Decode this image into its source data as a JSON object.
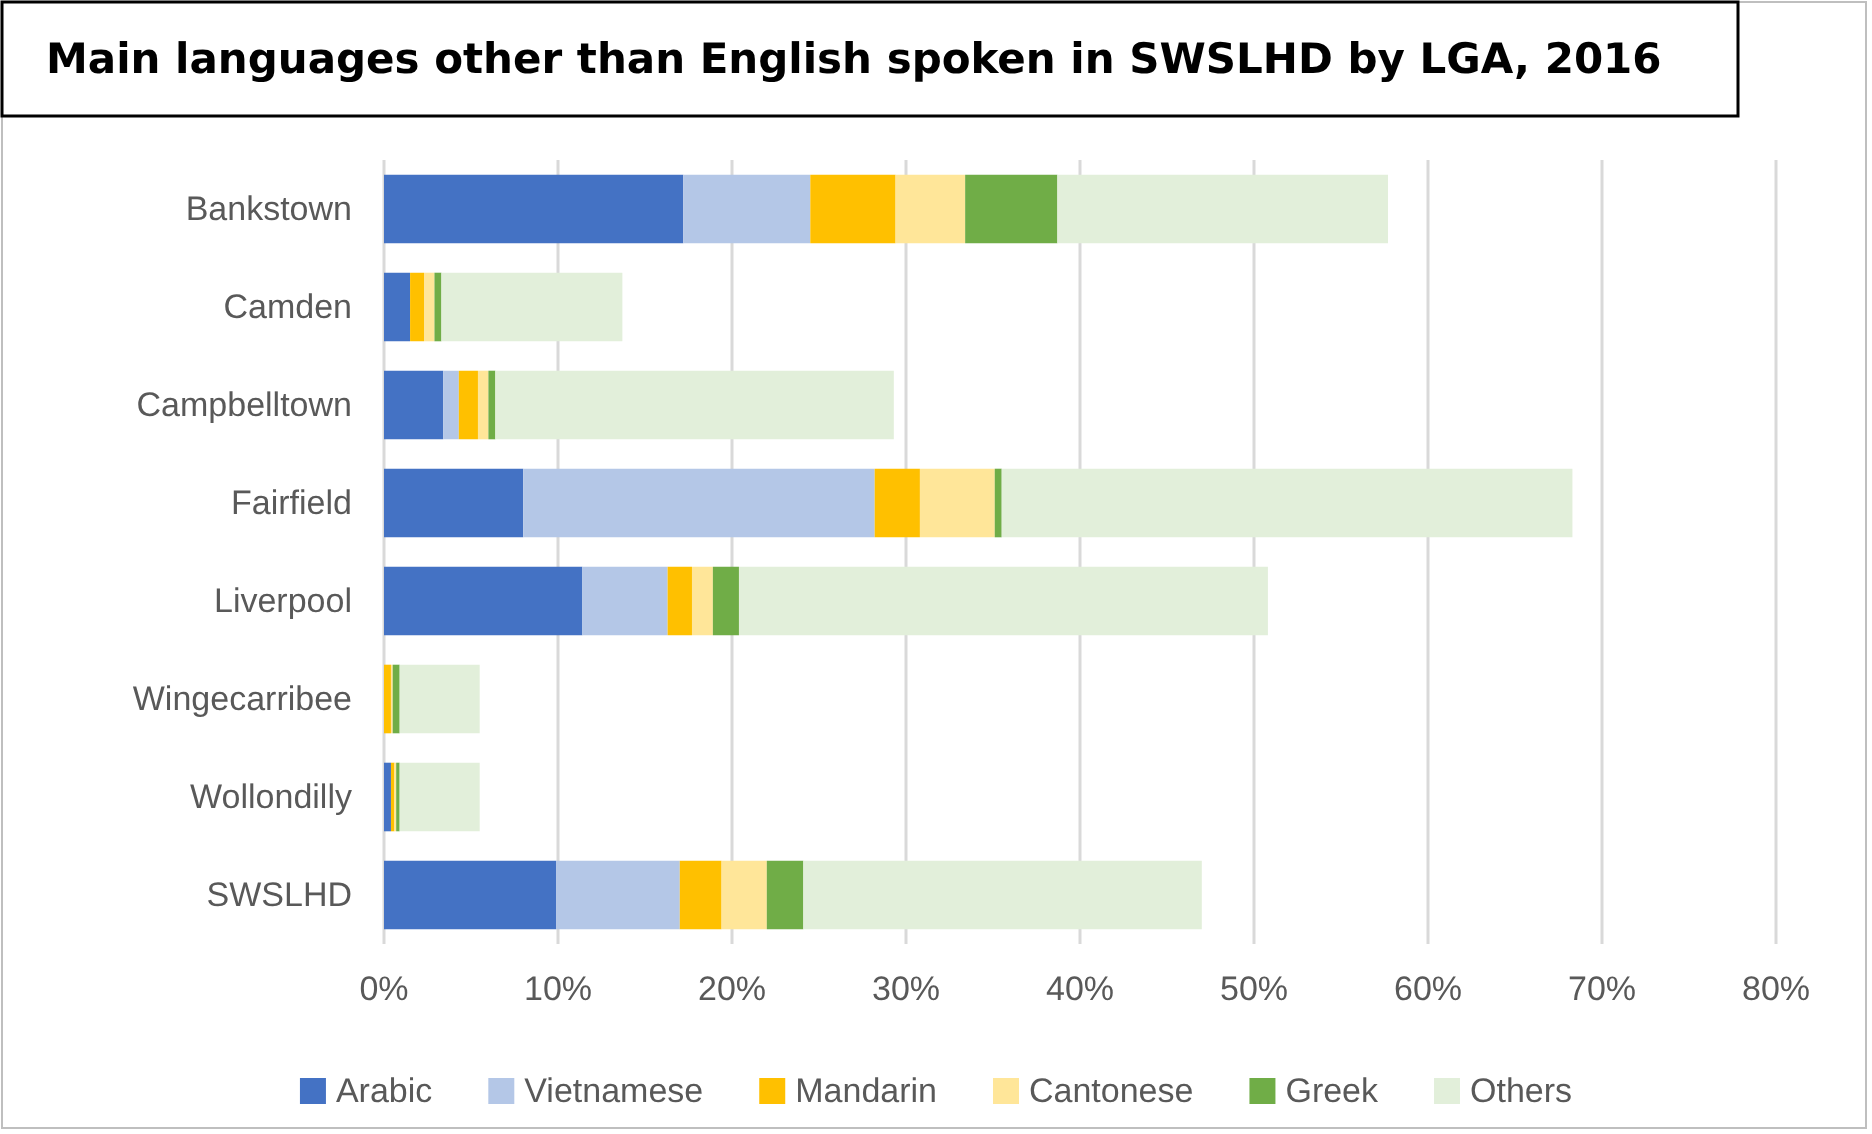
{
  "chart_data": {
    "type": "bar",
    "orientation": "horizontal",
    "stacked": true,
    "title": "Main languages other than English spoken in SWSLHD by LGA, 2016",
    "categories": [
      "Bankstown",
      "Camden",
      "Campbelltown",
      "Fairfield",
      "Liverpool",
      "Wingecarribee",
      "Wollondilly",
      "SWSLHD"
    ],
    "series": [
      {
        "name": "Arabic",
        "color": "#4472c4",
        "values": [
          17.2,
          1.5,
          3.4,
          8.0,
          11.4,
          0,
          0.4,
          9.9
        ]
      },
      {
        "name": "Vietnamese",
        "color": "#b4c7e7",
        "values": [
          7.3,
          null,
          0.9,
          20.2,
          4.9,
          null,
          null,
          7.1
        ]
      },
      {
        "name": "Mandarin",
        "color": "#ffc000",
        "values": [
          4.9,
          0.8,
          1.1,
          2.6,
          1.4,
          0.4,
          0.2,
          2.4
        ]
      },
      {
        "name": "Cantonese",
        "color": "#ffe699",
        "values": [
          4.0,
          0.6,
          0.6,
          4.3,
          1.2,
          0.1,
          0.1,
          2.6
        ]
      },
      {
        "name": "Greek",
        "color": "#70ad47",
        "values": [
          5.3,
          0.4,
          0.4,
          0.4,
          1.5,
          0.4,
          0.2,
          2.1
        ]
      },
      {
        "name": "Others",
        "color": "#e2efda",
        "values": [
          19.0,
          10.4,
          22.9,
          32.8,
          30.4,
          4.6,
          4.6,
          22.9
        ]
      }
    ],
    "xlim": [
      0,
      80
    ],
    "xticks": [
      {
        "value": 0,
        "label": "0%"
      },
      {
        "value": 10,
        "label": "10%"
      },
      {
        "value": 20,
        "label": "20%"
      },
      {
        "value": 30,
        "label": "30%"
      },
      {
        "value": 40,
        "label": "40%"
      },
      {
        "value": 50,
        "label": "50%"
      },
      {
        "value": 60,
        "label": "60%"
      },
      {
        "value": 70,
        "label": "70%"
      },
      {
        "value": 80,
        "label": "80%"
      }
    ],
    "grid": "x",
    "legend": "bottom"
  }
}
